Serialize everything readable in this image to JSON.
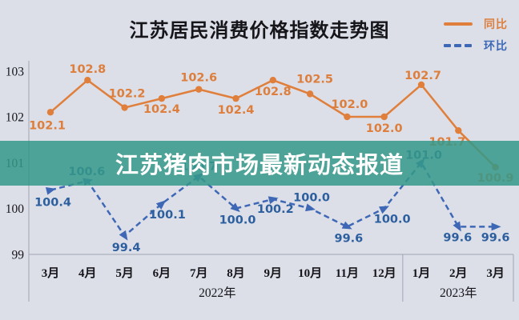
{
  "header": {
    "title": "江苏居民消费价格指数走势图"
  },
  "legend": {
    "position": "top-right",
    "items": [
      {
        "label": "同比",
        "color": "#e07f3b",
        "style": "solid"
      },
      {
        "label": "环比",
        "color": "#3e68b6",
        "style": "dashed"
      }
    ]
  },
  "banner": {
    "text": "江苏猪肉市场最新动态报道",
    "background": "#359889",
    "text_color": "#ffffff"
  },
  "chart_data": {
    "type": "line",
    "title": "江苏居民消费价格指数走势图",
    "categories": [
      "3月",
      "4月",
      "5月",
      "6月",
      "7月",
      "8月",
      "9月",
      "10月",
      "11月",
      "12月",
      "1月",
      "2月",
      "3月"
    ],
    "year_groups": [
      {
        "label": "2022年",
        "start": 0,
        "end": 9
      },
      {
        "label": "2023年",
        "start": 10,
        "end": 12
      }
    ],
    "y_ticks": [
      103,
      102,
      101,
      100,
      99
    ],
    "ylim": [
      99,
      103.5
    ],
    "grid": false,
    "legend_position": "top-right",
    "series": [
      {
        "name": "同比",
        "color": "#e07f3b",
        "label_color": "#dd7e3c",
        "line_style": "solid",
        "marker": "circle",
        "values": [
          102.1,
          102.8,
          102.2,
          102.4,
          102.6,
          102.4,
          102.8,
          102.5,
          102.0,
          102.0,
          102.7,
          101.7,
          100.9
        ],
        "label_dx": [
          -4,
          0,
          3,
          0,
          0,
          0,
          0,
          6,
          3,
          0,
          2,
          -14,
          0
        ],
        "label_dy": [
          16,
          -14,
          -18,
          13,
          -15,
          14,
          14,
          -19,
          -16,
          14,
          -12,
          14,
          13
        ]
      },
      {
        "name": "环比",
        "color": "#3e68b6",
        "label_color": "#2d5f9f",
        "line_style": "dashed",
        "marker": "arrow",
        "values": [
          100.4,
          100.6,
          99.4,
          100.1,
          100.7,
          100.0,
          100.2,
          100.0,
          99.6,
          100.0,
          101.0,
          99.6,
          99.6
        ],
        "label_dx": [
          3,
          -1,
          2,
          7,
          0,
          2,
          3,
          2,
          2,
          10,
          3,
          -1,
          0
        ],
        "label_dy": [
          15,
          -12,
          14,
          13,
          -13,
          14,
          12,
          -14,
          14,
          13,
          -10,
          13,
          13
        ],
        "occluded_label_index": 4
      }
    ]
  }
}
